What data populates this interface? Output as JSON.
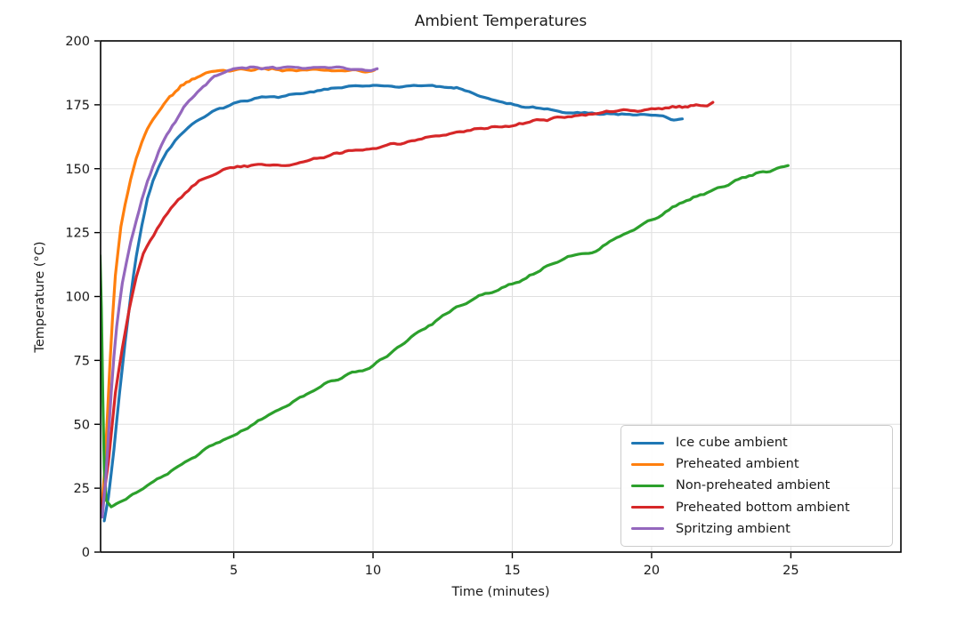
{
  "chart_data": {
    "type": "line",
    "title": "Ambient Temperatures",
    "xlabel": "Time (minutes)",
    "ylabel": "Temperature (°C)",
    "xlim": [
      0.22,
      28.95
    ],
    "ylim": [
      0,
      200
    ],
    "xticks": [
      5,
      10,
      15,
      20,
      25
    ],
    "yticks": [
      0,
      25,
      50,
      75,
      100,
      125,
      150,
      175,
      200
    ],
    "grid": true,
    "grid_color": "#e0e0e0",
    "axis_color": "#000000",
    "text_color": "#1a1a1a",
    "legend_position": "lower right",
    "line_width": 3.2,
    "series": [
      {
        "name": "Ice cube ambient",
        "color": "#1f77b4",
        "points": [
          [
            0.35,
            13
          ],
          [
            0.5,
            22
          ],
          [
            0.7,
            40
          ],
          [
            0.9,
            62
          ],
          [
            1.1,
            82
          ],
          [
            1.3,
            100
          ],
          [
            1.5,
            116
          ],
          [
            1.7,
            128
          ],
          [
            1.9,
            138
          ],
          [
            2.1,
            145
          ],
          [
            2.3,
            151
          ],
          [
            2.6,
            157
          ],
          [
            2.9,
            161.5
          ],
          [
            3.2,
            165
          ],
          [
            3.5,
            167.5
          ],
          [
            3.8,
            170
          ],
          [
            4.1,
            172
          ],
          [
            4.5,
            174
          ],
          [
            5,
            175.8
          ],
          [
            5.5,
            177
          ],
          [
            6,
            178
          ],
          [
            6.3,
            177.6
          ],
          [
            6.6,
            177.9
          ],
          [
            7,
            178.8
          ],
          [
            7.5,
            179.8
          ],
          [
            8,
            180.6
          ],
          [
            8.5,
            181.2
          ],
          [
            9,
            181.8
          ],
          [
            9.5,
            182.2
          ],
          [
            10,
            182.4
          ],
          [
            10.4,
            182.1
          ],
          [
            10.8,
            182.4
          ],
          [
            11.2,
            182.2
          ],
          [
            11.6,
            182.4
          ],
          [
            12,
            182.3
          ],
          [
            12.4,
            182.4
          ],
          [
            12.7,
            182
          ],
          [
            13,
            181.2
          ],
          [
            13.3,
            180.3
          ],
          [
            13.6,
            179.3
          ],
          [
            14,
            178.3
          ],
          [
            14.4,
            177.2
          ],
          [
            14.8,
            176.1
          ],
          [
            15.2,
            175
          ],
          [
            15.6,
            174.2
          ],
          [
            16,
            173.4
          ],
          [
            16.4,
            172.8
          ],
          [
            16.8,
            172.3
          ],
          [
            17.2,
            172
          ],
          [
            17.6,
            171.8
          ],
          [
            18,
            171.6
          ],
          [
            18.4,
            171.4
          ],
          [
            18.8,
            171.2
          ],
          [
            19.2,
            171.1
          ],
          [
            19.6,
            171
          ],
          [
            20,
            170.6
          ],
          [
            20.4,
            170.2
          ],
          [
            20.7,
            169.8
          ],
          [
            20.9,
            169.4
          ],
          [
            21.1,
            169.2
          ]
        ]
      },
      {
        "name": "Preheated ambient",
        "color": "#ff7f0e",
        "points": [
          [
            0.25,
            16
          ],
          [
            0.35,
            30
          ],
          [
            0.45,
            50
          ],
          [
            0.55,
            72
          ],
          [
            0.65,
            92
          ],
          [
            0.75,
            108
          ],
          [
            0.85,
            118
          ],
          [
            0.95,
            127
          ],
          [
            1.1,
            136
          ],
          [
            1.3,
            146
          ],
          [
            1.5,
            154
          ],
          [
            1.7,
            160
          ],
          [
            1.9,
            165
          ],
          [
            2.1,
            169
          ],
          [
            2.3,
            172.5
          ],
          [
            2.5,
            175.5
          ],
          [
            2.7,
            178
          ],
          [
            2.9,
            180
          ],
          [
            3.1,
            182
          ],
          [
            3.3,
            183.5
          ],
          [
            3.5,
            185
          ],
          [
            3.7,
            185.8
          ],
          [
            3.9,
            186.6
          ],
          [
            4.2,
            187.5
          ],
          [
            4.5,
            188
          ],
          [
            5,
            188.5
          ],
          [
            5.5,
            188.8
          ],
          [
            6,
            189
          ],
          [
            6.5,
            188.7
          ],
          [
            7,
            189
          ],
          [
            7.5,
            188.6
          ],
          [
            8,
            188.8
          ],
          [
            8.5,
            188.5
          ],
          [
            9,
            188.7
          ],
          [
            9.5,
            188.4
          ],
          [
            10.05,
            188.2
          ]
        ]
      },
      {
        "name": "Non-preheated ambient",
        "color": "#2ca02c",
        "points": [
          [
            0.2,
            116
          ],
          [
            0.25,
            95
          ],
          [
            0.3,
            60
          ],
          [
            0.35,
            32
          ],
          [
            0.42,
            20
          ],
          [
            0.6,
            18
          ],
          [
            0.8,
            18.8
          ],
          [
            1,
            19.8
          ],
          [
            1.5,
            23
          ],
          [
            2,
            26.3
          ],
          [
            2.5,
            29.8
          ],
          [
            3,
            33.2
          ],
          [
            3.5,
            37
          ],
          [
            4,
            40.5
          ],
          [
            4.5,
            43.2
          ],
          [
            5,
            45.6
          ],
          [
            5.5,
            48.5
          ],
          [
            6,
            52
          ],
          [
            6.5,
            55
          ],
          [
            7,
            58
          ],
          [
            7.5,
            61
          ],
          [
            8,
            64
          ],
          [
            8.5,
            66.8
          ],
          [
            9,
            69
          ],
          [
            9.5,
            71
          ],
          [
            10,
            73
          ],
          [
            10.5,
            77
          ],
          [
            11,
            81
          ],
          [
            11.5,
            85
          ],
          [
            12,
            88.5
          ],
          [
            12.5,
            92
          ],
          [
            13,
            95.5
          ],
          [
            13.8,
            100
          ],
          [
            14.5,
            103
          ],
          [
            15,
            104.8
          ],
          [
            15.5,
            107
          ],
          [
            16,
            110
          ],
          [
            16.5,
            113
          ],
          [
            17,
            115
          ],
          [
            17.5,
            116.5
          ],
          [
            18,
            118
          ],
          [
            18.5,
            121
          ],
          [
            19,
            124
          ],
          [
            19.5,
            127
          ],
          [
            20,
            130
          ],
          [
            20.5,
            133
          ],
          [
            21,
            136
          ],
          [
            21.5,
            139
          ],
          [
            22,
            141
          ],
          [
            22.5,
            143
          ],
          [
            23,
            145
          ],
          [
            23.5,
            147.3
          ],
          [
            24,
            148.8
          ],
          [
            24.5,
            150.3
          ],
          [
            24.9,
            151.2
          ]
        ]
      },
      {
        "name": "Preheated bottom ambient",
        "color": "#d62728",
        "points": [
          [
            0.25,
            15
          ],
          [
            0.5,
            35
          ],
          [
            0.75,
            62
          ],
          [
            1,
            80
          ],
          [
            1.25,
            95
          ],
          [
            1.5,
            107
          ],
          [
            1.75,
            116
          ],
          [
            2,
            122
          ],
          [
            2.25,
            127
          ],
          [
            2.5,
            131
          ],
          [
            3,
            138
          ],
          [
            3.5,
            143
          ],
          [
            4,
            146.5
          ],
          [
            4.5,
            149
          ],
          [
            5,
            150.5
          ],
          [
            5.5,
            151
          ],
          [
            6,
            151.5
          ],
          [
            6.3,
            151
          ],
          [
            6.7,
            151.3
          ],
          [
            7,
            151.5
          ],
          [
            7.5,
            152.5
          ],
          [
            8,
            154
          ],
          [
            8.7,
            156
          ],
          [
            9,
            156.5
          ],
          [
            9.5,
            157.2
          ],
          [
            10,
            158
          ],
          [
            10.5,
            159
          ],
          [
            11,
            160
          ],
          [
            11.5,
            161
          ],
          [
            12,
            162
          ],
          [
            12.5,
            163
          ],
          [
            13,
            164
          ],
          [
            13.5,
            165
          ],
          [
            14,
            165.8
          ],
          [
            14.5,
            166.3
          ],
          [
            15,
            166.8
          ],
          [
            15.5,
            167.8
          ],
          [
            16,
            168.8
          ],
          [
            16.5,
            169.8
          ],
          [
            17,
            170.5
          ],
          [
            17.5,
            171.2
          ],
          [
            18,
            171.8
          ],
          [
            18.5,
            172.3
          ],
          [
            19,
            172.8
          ],
          [
            19.5,
            173
          ],
          [
            20,
            173.3
          ],
          [
            20.5,
            173.8
          ],
          [
            21,
            174.3
          ],
          [
            21.3,
            174
          ],
          [
            21.6,
            174.4
          ],
          [
            21.9,
            174.9
          ],
          [
            22.2,
            175.4
          ]
        ]
      },
      {
        "name": "Spritzing ambient",
        "color": "#9467bd",
        "points": [
          [
            0.28,
            14
          ],
          [
            0.4,
            28
          ],
          [
            0.5,
            45
          ],
          [
            0.6,
            62
          ],
          [
            0.7,
            76
          ],
          [
            0.8,
            88
          ],
          [
            0.9,
            97
          ],
          [
            1,
            105
          ],
          [
            1.15,
            113
          ],
          [
            1.3,
            121
          ],
          [
            1.5,
            130
          ],
          [
            1.7,
            138
          ],
          [
            1.9,
            145
          ],
          [
            2.1,
            151
          ],
          [
            2.3,
            156.5
          ],
          [
            2.5,
            161
          ],
          [
            2.7,
            165
          ],
          [
            2.9,
            168.5
          ],
          [
            3.1,
            172
          ],
          [
            3.3,
            175
          ],
          [
            3.5,
            177.5
          ],
          [
            3.7,
            180
          ],
          [
            3.9,
            182
          ],
          [
            4.1,
            184
          ],
          [
            4.3,
            185.5
          ],
          [
            4.5,
            187
          ],
          [
            4.8,
            188.5
          ],
          [
            5,
            189
          ],
          [
            5.3,
            189.5
          ],
          [
            5.6,
            189.8
          ],
          [
            6,
            189.6
          ],
          [
            6.4,
            189.9
          ],
          [
            6.8,
            189.5
          ],
          [
            7.2,
            189.8
          ],
          [
            7.6,
            189.4
          ],
          [
            8,
            189.6
          ],
          [
            8.4,
            189.3
          ],
          [
            8.8,
            189.5
          ],
          [
            9.2,
            189.2
          ],
          [
            9.6,
            189.3
          ],
          [
            10.15,
            188.9
          ]
        ]
      }
    ]
  }
}
